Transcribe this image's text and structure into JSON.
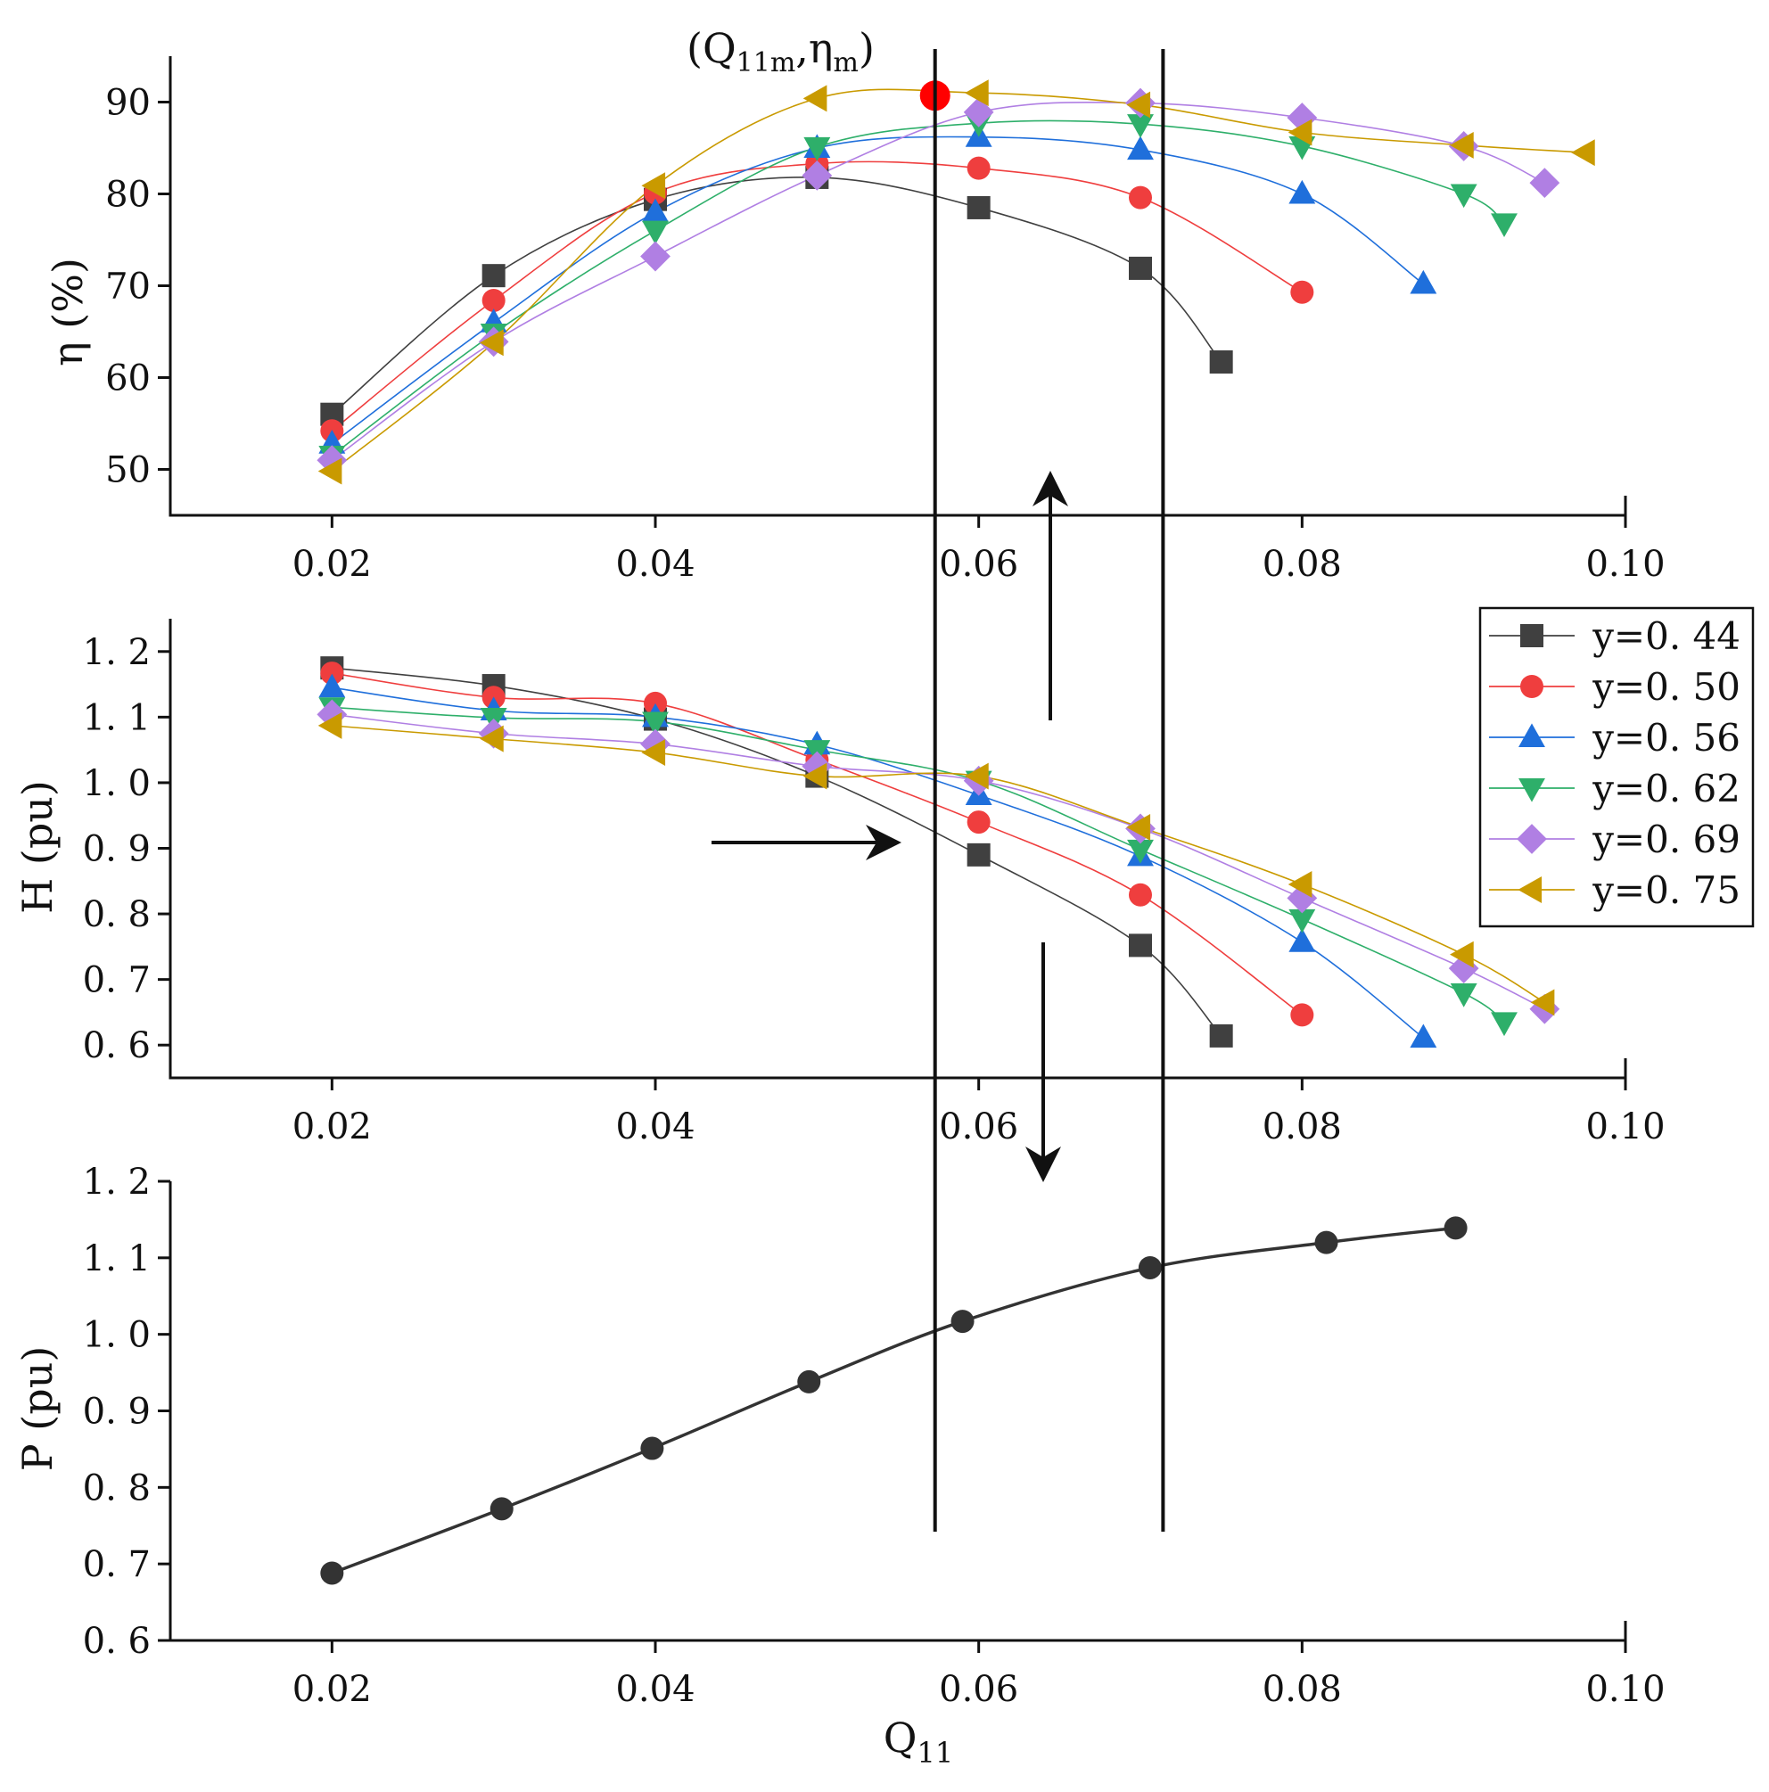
{
  "chart_data": {
    "type": "line",
    "x_axis": {
      "ticks": [
        "0.02",
        "0.04",
        "0.06",
        "0.08",
        "0.10"
      ],
      "tick_values": [
        0.02,
        0.04,
        0.06,
        0.08,
        0.1
      ],
      "range": [
        0.01,
        0.1
      ],
      "label_main": "Q",
      "label_sub": "11"
    },
    "reference_lines_x": [
      0.0573,
      0.0714
    ],
    "annotation": {
      "text_q": "(Q",
      "sub_q": "11m",
      "text_sep": ",η",
      "sub_eta": "m",
      "text_close": ")",
      "color": "#FF0000",
      "point_x": 0.0573,
      "point_y": 90.7
    },
    "legend": [
      {
        "label": "y=0. 44",
        "color": "#404040",
        "marker": "square"
      },
      {
        "label": "y=0. 50",
        "color": "#EF3E3E",
        "marker": "circle"
      },
      {
        "label": "y=0. 56",
        "color": "#1F6FDB",
        "marker": "triangle-up"
      },
      {
        "label": "y=0. 62",
        "color": "#2EAF6A",
        "marker": "triangle-down"
      },
      {
        "label": "y=0. 69",
        "color": "#B07FE3",
        "marker": "diamond"
      },
      {
        "label": "y=0. 75",
        "color": "#C99A00",
        "marker": "triangle-left"
      }
    ],
    "panels": [
      {
        "id": "efficiency",
        "ylabel": "η (%)",
        "ylim": [
          45,
          95
        ],
        "yticks": [
          "50",
          "60",
          "70",
          "80",
          "90"
        ],
        "ytick_values": [
          50,
          60,
          70,
          80,
          90
        ],
        "series": [
          {
            "name": "y=0. 44",
            "x": [
              0.02,
              0.03,
              0.04,
              0.05,
              0.06,
              0.07,
              0.075
            ],
            "y": [
              56.0,
              71.1,
              79.4,
              81.8,
              78.5,
              71.9,
              61.7
            ]
          },
          {
            "name": "y=0. 50",
            "x": [
              0.02,
              0.03,
              0.04,
              0.05,
              0.06,
              0.07,
              0.08
            ],
            "y": [
              54.2,
              68.4,
              80.1,
              83.3,
              82.8,
              79.6,
              69.3
            ]
          },
          {
            "name": "y=0. 56",
            "x": [
              0.02,
              0.03,
              0.04,
              0.05,
              0.06,
              0.07,
              0.08,
              0.0875
            ],
            "y": [
              52.8,
              66.0,
              78.0,
              85.0,
              86.2,
              84.8,
              80.0,
              70.2
            ]
          },
          {
            "name": "y=0. 62",
            "x": [
              0.02,
              0.03,
              0.04,
              0.05,
              0.06,
              0.07,
              0.08,
              0.09,
              0.0925
            ],
            "y": [
              51.5,
              64.8,
              76.0,
              85.1,
              87.7,
              87.6,
              85.2,
              80.0,
              76.8
            ]
          },
          {
            "name": "y=0. 69",
            "x": [
              0.02,
              0.03,
              0.04,
              0.05,
              0.06,
              0.07,
              0.08,
              0.09,
              0.095
            ],
            "y": [
              51.0,
              63.9,
              73.2,
              82.0,
              88.9,
              89.9,
              88.3,
              85.2,
              81.2
            ]
          },
          {
            "name": "y=0. 75",
            "x": [
              0.02,
              0.03,
              0.04,
              0.05,
              0.06,
              0.07,
              0.08,
              0.09,
              0.0975
            ],
            "y": [
              49.8,
              63.8,
              80.9,
              90.4,
              91.0,
              89.7,
              86.7,
              85.3,
              84.5
            ]
          }
        ]
      },
      {
        "id": "head",
        "ylabel": "H (pu)",
        "ylim": [
          0.55,
          1.25
        ],
        "yticks": [
          "0. 6",
          "0. 7",
          "0. 8",
          "0. 9",
          "1. 0",
          "1. 1",
          "1. 2"
        ],
        "ytick_values": [
          0.6,
          0.7,
          0.8,
          0.9,
          1.0,
          1.1,
          1.2
        ],
        "series": [
          {
            "name": "y=0. 44",
            "x": [
              0.02,
              0.03,
              0.04,
              0.05,
              0.06,
              0.07,
              0.075
            ],
            "y": [
              1.175,
              1.148,
              1.097,
              1.01,
              0.89,
              0.752,
              0.614
            ]
          },
          {
            "name": "y=0. 50",
            "x": [
              0.02,
              0.03,
              0.04,
              0.05,
              0.06,
              0.07,
              0.08
            ],
            "y": [
              1.167,
              1.13,
              1.121,
              1.035,
              0.94,
              0.829,
              0.646
            ]
          },
          {
            "name": "y=0. 56",
            "x": [
              0.02,
              0.03,
              0.04,
              0.05,
              0.06,
              0.07,
              0.08,
              0.0875
            ],
            "y": [
              1.145,
              1.11,
              1.1,
              1.058,
              0.981,
              0.888,
              0.757,
              0.611
            ]
          },
          {
            "name": "y=0. 62",
            "x": [
              0.02,
              0.03,
              0.04,
              0.05,
              0.06,
              0.07,
              0.08,
              0.09,
              0.0925
            ],
            "y": [
              1.115,
              1.099,
              1.093,
              1.05,
              1.003,
              0.898,
              0.792,
              0.679,
              0.635
            ]
          },
          {
            "name": "y=0. 69",
            "x": [
              0.02,
              0.03,
              0.04,
              0.05,
              0.06,
              0.07,
              0.08,
              0.09,
              0.095
            ],
            "y": [
              1.104,
              1.075,
              1.059,
              1.025,
              1.003,
              0.93,
              0.824,
              0.717,
              0.655
            ]
          },
          {
            "name": "y=0. 75",
            "x": [
              0.02,
              0.03,
              0.04,
              0.05,
              0.06,
              0.07,
              0.08,
              0.09,
              0.095
            ],
            "y": [
              1.087,
              1.067,
              1.046,
              1.01,
              1.01,
              0.932,
              0.845,
              0.738,
              0.665
            ]
          }
        ]
      },
      {
        "id": "power",
        "ylabel": "P (pu)",
        "ylim": [
          0.6,
          1.2
        ],
        "yticks": [
          "0. 6",
          "0. 7",
          "0. 8",
          "0. 9",
          "1. 0",
          "1. 1",
          "1. 2"
        ],
        "ytick_values": [
          0.6,
          0.7,
          0.8,
          0.9,
          1.0,
          1.1,
          1.2
        ],
        "series": [
          {
            "name": "P",
            "color": "#333333",
            "marker": "circle",
            "x": [
              0.02,
              0.0305,
              0.0398,
              0.0495,
              0.059,
              0.0706,
              0.0815,
              0.0895
            ],
            "y": [
              0.688,
              0.772,
              0.851,
              0.938,
              1.017,
              1.087,
              1.12,
              1.139
            ]
          }
        ]
      }
    ]
  }
}
